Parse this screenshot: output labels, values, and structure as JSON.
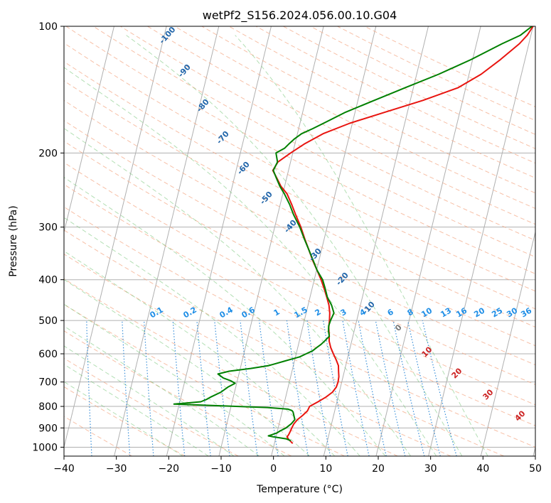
{
  "chart_data": {
    "type": "line",
    "title": "wetPf2_S156.2024.056.00.10.G04",
    "xlabel": "Temperature (°C)",
    "ylabel": "Pressure (hPa)",
    "xlim": [
      -40,
      50
    ],
    "ylim": [
      1050,
      100
    ],
    "y_scale": "log",
    "grid": true,
    "x_ticks": [
      -40,
      -30,
      -20,
      -10,
      0,
      10,
      20,
      30,
      40,
      50
    ],
    "y_ticks": [
      100,
      200,
      300,
      400,
      500,
      600,
      700,
      800,
      900,
      1000
    ],
    "x_tick_labels": [
      "−40",
      "−30",
      "−20",
      "−10",
      "0",
      "10",
      "20",
      "30",
      "40",
      "50"
    ],
    "y_tick_labels": [
      "100",
      "200",
      "300",
      "400",
      "500",
      "600",
      "700",
      "800",
      "900",
      "1000"
    ],
    "series": [
      {
        "color": "#e8140f",
        "p": [
          980,
          960,
          945,
          935,
          925,
          915,
          900,
          880,
          860,
          840,
          820,
          800,
          780,
          760,
          740,
          720,
          700,
          680,
          660,
          640,
          620,
          600,
          580,
          560,
          540,
          520,
          500,
          480,
          460,
          440,
          420,
          400,
          380,
          360,
          340,
          320,
          300,
          280,
          265,
          250,
          240,
          230,
          220,
          210,
          200,
          190,
          180,
          170,
          160,
          150,
          140,
          130,
          120,
          110,
          105,
          100
        ],
        "t": [
          3.5,
          2.6,
          2.1,
          2.3,
          2.4,
          2.5,
          2.6,
          2.8,
          3.3,
          4.1,
          4.8,
          5.0,
          6.4,
          7.7,
          8.7,
          9.2,
          9.3,
          9.2,
          8.9,
          8.6,
          7.9,
          7.1,
          6.3,
          5.7,
          5.4,
          5.0,
          4.8,
          4.5,
          4.0,
          3.2,
          2.3,
          1.3,
          0.1,
          -1.2,
          -2.4,
          -3.7,
          -5.0,
          -6.6,
          -7.8,
          -9.2,
          -10.7,
          -11.8,
          -13.0,
          -12.4,
          -10.4,
          -8.1,
          -5.1,
          -0.5,
          5.7,
          12.4,
          18.5,
          22.3,
          25.3,
          28.2,
          29.3,
          30.0
        ]
      },
      {
        "color": "#008000",
        "p": [
          965,
          955,
          945,
          940,
          935,
          925,
          915,
          900,
          880,
          860,
          840,
          825,
          818,
          812,
          805,
          800,
          795,
          790,
          780,
          770,
          760,
          740,
          720,
          705,
          695,
          685,
          670,
          660,
          650,
          640,
          625,
          610,
          600,
          590,
          580,
          570,
          560,
          545,
          530,
          515,
          500,
          480,
          460,
          440,
          420,
          400,
          380,
          360,
          340,
          320,
          300,
          280,
          265,
          250,
          240,
          230,
          220,
          210,
          200,
          195,
          190,
          185,
          180,
          175,
          170,
          160,
          150,
          140,
          130,
          120,
          110,
          105,
          100
        ],
        "t": [
          3.0,
          2.0,
          -0.5,
          -1.5,
          -1.0,
          0.0,
          0.5,
          1.5,
          2.3,
          2.8,
          2.4,
          2.1,
          1.8,
          1.0,
          -3.0,
          -9.0,
          -15.0,
          -21.0,
          -16.0,
          -15.0,
          -14.3,
          -12.6,
          -11.5,
          -10.3,
          -11.3,
          -12.8,
          -14.0,
          -12.0,
          -8.0,
          -4.7,
          -2.0,
          0.8,
          1.9,
          3.0,
          3.6,
          4.3,
          4.8,
          5.5,
          5.1,
          4.9,
          5.0,
          5.3,
          4.5,
          3.3,
          2.5,
          1.6,
          0.1,
          -1.1,
          -2.4,
          -3.8,
          -5.2,
          -7.0,
          -8.2,
          -9.7,
          -10.9,
          -11.9,
          -12.9,
          -12.5,
          -13.2,
          -11.8,
          -11.1,
          -10.3,
          -9.2,
          -7.3,
          -5.5,
          -1.8,
          3.1,
          8.4,
          14.2,
          19.7,
          24.9,
          28.0,
          29.8
        ]
      }
    ],
    "dry_adiabat_labels": [
      "-100",
      "-90",
      "-80",
      "-70",
      "-60",
      "-50",
      "-40",
      "-30",
      "-20",
      "-10"
    ],
    "mixing_ratio_labels": [
      "0.1",
      "0.2",
      "0.4",
      "0.6",
      "1",
      "1.5",
      "2",
      "3",
      "4",
      "6",
      "8",
      "10",
      "13",
      "16",
      "20",
      "25",
      "30",
      "36"
    ],
    "moist_adiabat_labels": [
      "0",
      "10",
      "20",
      "30",
      "40"
    ]
  }
}
